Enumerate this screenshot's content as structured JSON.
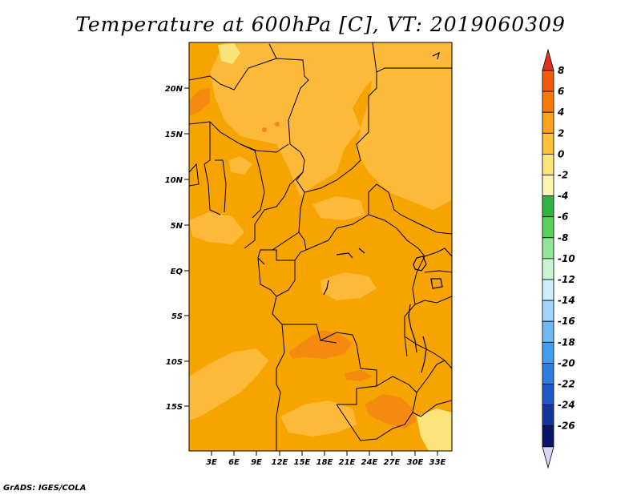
{
  "title": "Temperature at 600hPa [C], VT: 2019060309",
  "credit": "GrADS: IGES/COLA",
  "map": {
    "lat_labels": [
      "20N",
      "15N",
      "10N",
      "5N",
      "EQ",
      "5S",
      "10S",
      "15S"
    ],
    "lon_labels": [
      "3E",
      "6E",
      "9E",
      "12E",
      "15E",
      "18E",
      "21E",
      "24E",
      "27E",
      "30E",
      "33E"
    ],
    "background_color": "#f7a400"
  },
  "legend": {
    "labels": [
      "8",
      "6",
      "4",
      "2",
      "0",
      "-2",
      "-4",
      "-6",
      "-8",
      "-10",
      "-12",
      "-14",
      "-16",
      "-18",
      "-20",
      "-22",
      "-24",
      "-26"
    ],
    "colors": [
      "#e0301e",
      "#f55a0a",
      "#fa7a00",
      "#fda21b",
      "#fdc238",
      "#fde47a",
      "#fef5b0",
      "#31b542",
      "#5ad25a",
      "#8fe696",
      "#c8f5d2",
      "#cdeefb",
      "#9fd6fa",
      "#6fbaf5",
      "#3f9ef0",
      "#2d7ee0",
      "#1e5ac8",
      "#1434a0",
      "#0a1466",
      "#d8d6f5"
    ]
  }
}
